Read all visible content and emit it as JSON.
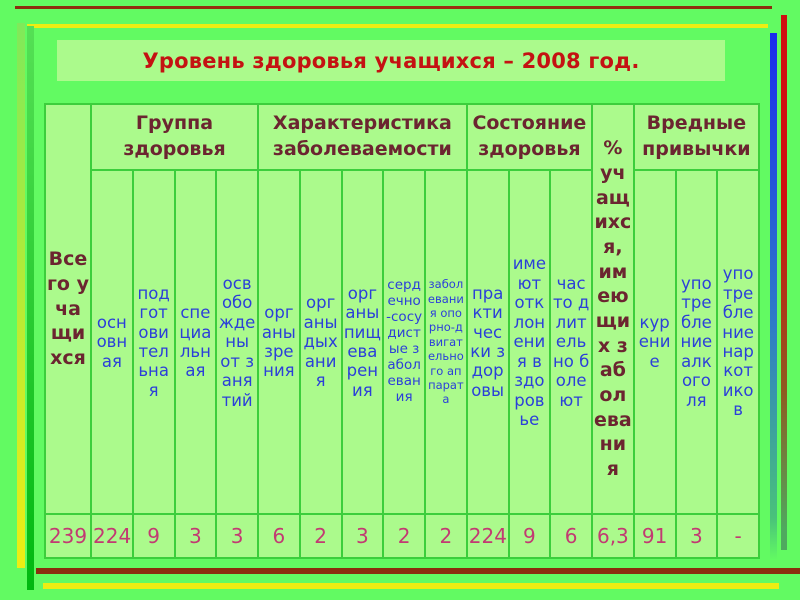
{
  "slide": {
    "title": "Уровень здоровья учащихся – 2008 год."
  },
  "table": {
    "total_header": "Всего учащихся",
    "total_value": "239",
    "percent_header": "% учащихся, имеющих заболевания",
    "percent_value": "6,3",
    "percent_before_group": 3,
    "groups": [
      {
        "label": "Группа\nздоровья",
        "columns": [
          {
            "label": "основная",
            "value": "224"
          },
          {
            "label": "подготовительная",
            "value": "9"
          },
          {
            "label": "специальная",
            "value": "3"
          },
          {
            "label": "освобождены от занятий",
            "value": "3"
          }
        ]
      },
      {
        "label": "Характеристика\nзаболеваемости",
        "columns": [
          {
            "label": "органы зрения",
            "value": "6"
          },
          {
            "label": "органы дыхания",
            "value": "2"
          },
          {
            "label": "органы пищеварения",
            "value": "3"
          },
          {
            "label": "сердечно-сосудистые заболевания",
            "value": "2"
          },
          {
            "label": "заболевания опорно-двигательного аппарата",
            "value": "2"
          }
        ]
      },
      {
        "label": "Состояние\nздоровья",
        "columns": [
          {
            "label": "практически здоровы",
            "value": "224"
          },
          {
            "label": "имеют отклонения в здоровье",
            "value": "9"
          },
          {
            "label": "часто длительно болеют",
            "value": "6"
          }
        ]
      },
      {
        "label": "Вредные\nпривычки",
        "columns": [
          {
            "label": "курение",
            "value": "91"
          },
          {
            "label": "употребление алкоголя",
            "value": "3"
          },
          {
            "label": "употребление наркотиков",
            "value": "-"
          }
        ]
      }
    ]
  },
  "colors": {
    "bg": "#62FA62",
    "panel": "#ABFA8C",
    "line": "#3CCE3C",
    "title-red": "#C41212",
    "maroon-text": "#6B2530",
    "blue-text": "#2B3FD9",
    "crimson-text": "#C23A72",
    "maroon-bar": "#8B2E0E",
    "maroon-bar2": "#A03010",
    "yellow-bar": "#EDED12",
    "leftbar-top": "#7FE95A",
    "greenbar-top": "#55E055",
    "greenbar-bottom": "#00B810",
    "bluebar-top": "#1A2CEC",
    "bluebar-mid": "#2E7BC8",
    "bluebar-bottom": "#49C27A",
    "redbar-top": "#D01010",
    "redbar-mid": "#8F5A20",
    "redbar-bottom": "#4FA85F"
  }
}
